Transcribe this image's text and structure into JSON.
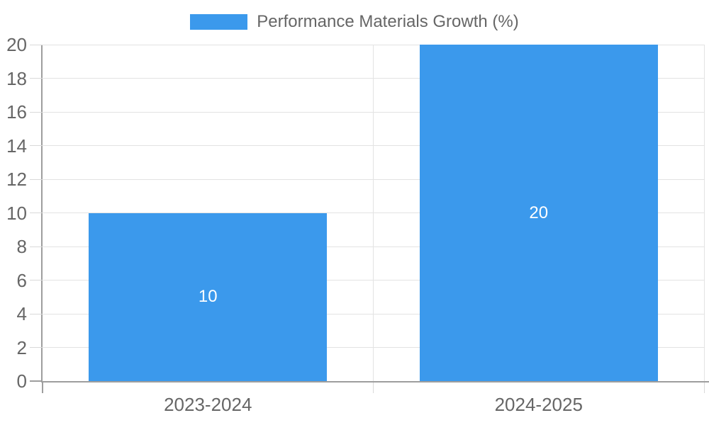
{
  "chart_data": {
    "type": "bar",
    "title": "Performance Materials Growth (%)",
    "legend_entries": [
      "Performance Materials Growth (%)"
    ],
    "legend_position": "top",
    "categories": [
      "2023-2024",
      "2024-2025"
    ],
    "values": [
      10,
      20
    ],
    "data_labels": [
      "10",
      "20"
    ],
    "xlabel": "",
    "ylabel": "",
    "ylim": [
      0,
      20
    ],
    "ytick_step": 2,
    "yticks": [
      0,
      2,
      4,
      6,
      8,
      10,
      12,
      14,
      16,
      18,
      20
    ],
    "grid": true
  },
  "legend": {
    "label": "Performance Materials Growth (%)"
  },
  "colors": {
    "bar": "#3b99ec",
    "data_label": "#ffffff",
    "text": "#666666",
    "grid_line": "#e3e3e3",
    "tick_mark": "#d9d9d9",
    "axis_line": "#9e9e9e",
    "background": "#ffffff"
  }
}
